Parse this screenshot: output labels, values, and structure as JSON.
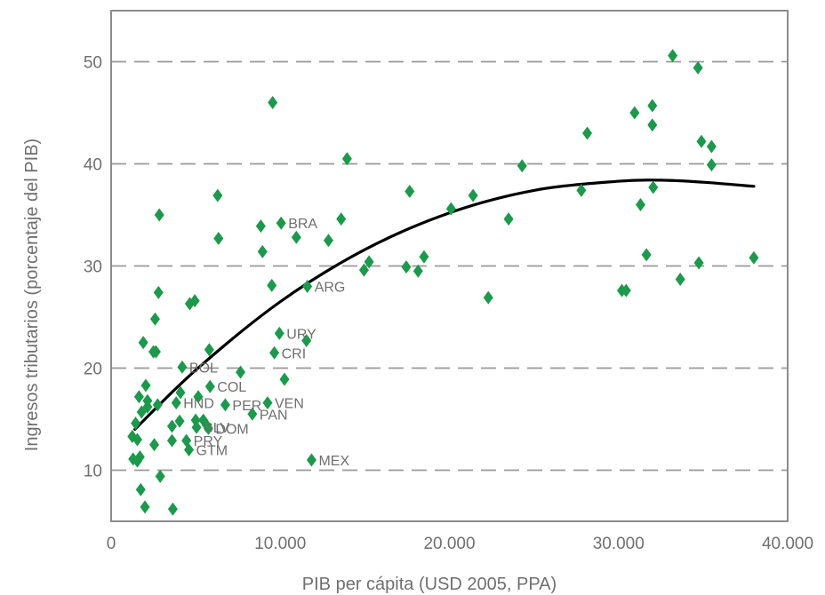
{
  "chart_data": {
    "type": "scatter",
    "title": "",
    "xlabel": "PIB per cápita (USD 2005, PPA)",
    "ylabel": "Ingresos tributarios (porcentaje del PIB)",
    "xlim": [
      0,
      40000
    ],
    "ylim": [
      5,
      55
    ],
    "x_ticks": [
      0,
      10000,
      20000,
      30000,
      40000
    ],
    "x_tick_labels": [
      "0",
      "10.000",
      "20.000",
      "30.000",
      "40.000"
    ],
    "y_ticks": [
      10,
      20,
      30,
      40,
      50
    ],
    "y_tick_labels": [
      "10",
      "20",
      "30",
      "40",
      "50"
    ],
    "grid": "horizontal dashed",
    "colors": {
      "points": "#1a9a4a",
      "trend": "#000000",
      "grid": "#999999",
      "frame": "#8c8c8c",
      "text": "#6f6f6f"
    },
    "points": [
      {
        "x": 1250,
        "y": 13.3
      },
      {
        "x": 1300,
        "y": 11.1
      },
      {
        "x": 1450,
        "y": 14.6
      },
      {
        "x": 1550,
        "y": 13.0
      },
      {
        "x": 1550,
        "y": 10.9
      },
      {
        "x": 1650,
        "y": 17.2
      },
      {
        "x": 1700,
        "y": 11.3
      },
      {
        "x": 1750,
        "y": 8.1
      },
      {
        "x": 1800,
        "y": 15.7
      },
      {
        "x": 1900,
        "y": 22.5
      },
      {
        "x": 2000,
        "y": 6.4
      },
      {
        "x": 2050,
        "y": 18.3
      },
      {
        "x": 2150,
        "y": 16.8
      },
      {
        "x": 2150,
        "y": 16.2
      },
      {
        "x": 2500,
        "y": 21.6
      },
      {
        "x": 2550,
        "y": 12.5
      },
      {
        "x": 2600,
        "y": 24.8
      },
      {
        "x": 2650,
        "y": 21.6
      },
      {
        "x": 2750,
        "y": 16.4
      },
      {
        "x": 2800,
        "y": 27.4
      },
      {
        "x": 2850,
        "y": 35.0
      },
      {
        "x": 2900,
        "y": 9.4
      },
      {
        "x": 3600,
        "y": 14.3
      },
      {
        "x": 3600,
        "y": 12.9
      },
      {
        "x": 3650,
        "y": 6.2
      },
      {
        "x": 3850,
        "y": 16.6
      },
      {
        "x": 4100,
        "y": 17.6
      },
      {
        "x": 4050,
        "y": 14.8
      },
      {
        "x": 4200,
        "y": 20.1
      },
      {
        "x": 4450,
        "y": 12.9
      },
      {
        "x": 4600,
        "y": 12.0
      },
      {
        "x": 4650,
        "y": 26.3
      },
      {
        "x": 4950,
        "y": 26.6
      },
      {
        "x": 5000,
        "y": 14.9
      },
      {
        "x": 5050,
        "y": 14.2
      },
      {
        "x": 5150,
        "y": 17.2
      },
      {
        "x": 5450,
        "y": 14.9
      },
      {
        "x": 5650,
        "y": 14.4
      },
      {
        "x": 5750,
        "y": 14.1
      },
      {
        "x": 5800,
        "y": 21.8
      },
      {
        "x": 5850,
        "y": 18.2
      },
      {
        "x": 6300,
        "y": 36.9
      },
      {
        "x": 6350,
        "y": 32.7
      },
      {
        "x": 6750,
        "y": 16.4
      },
      {
        "x": 7650,
        "y": 19.6
      },
      {
        "x": 8350,
        "y": 15.5
      },
      {
        "x": 8850,
        "y": 33.9
      },
      {
        "x": 8950,
        "y": 31.4
      },
      {
        "x": 9250,
        "y": 16.6
      },
      {
        "x": 9500,
        "y": 28.1
      },
      {
        "x": 9550,
        "y": 46.0
      },
      {
        "x": 9650,
        "y": 21.5
      },
      {
        "x": 9950,
        "y": 23.4
      },
      {
        "x": 10050,
        "y": 34.2
      },
      {
        "x": 10250,
        "y": 18.9
      },
      {
        "x": 10950,
        "y": 32.8
      },
      {
        "x": 11550,
        "y": 22.7
      },
      {
        "x": 11600,
        "y": 28.0
      },
      {
        "x": 11850,
        "y": 11.0
      },
      {
        "x": 12850,
        "y": 32.5
      },
      {
        "x": 13600,
        "y": 34.6
      },
      {
        "x": 13950,
        "y": 40.5
      },
      {
        "x": 14950,
        "y": 29.6
      },
      {
        "x": 15250,
        "y": 30.4
      },
      {
        "x": 17450,
        "y": 29.9
      },
      {
        "x": 17650,
        "y": 37.3
      },
      {
        "x": 18150,
        "y": 29.5
      },
      {
        "x": 18500,
        "y": 30.9
      },
      {
        "x": 20100,
        "y": 35.6
      },
      {
        "x": 21400,
        "y": 36.9
      },
      {
        "x": 22300,
        "y": 26.9
      },
      {
        "x": 23500,
        "y": 34.6
      },
      {
        "x": 24300,
        "y": 39.8
      },
      {
        "x": 27800,
        "y": 37.4
      },
      {
        "x": 28150,
        "y": 43.0
      },
      {
        "x": 30200,
        "y": 27.6
      },
      {
        "x": 30450,
        "y": 27.6
      },
      {
        "x": 30950,
        "y": 45.0
      },
      {
        "x": 31300,
        "y": 36.0
      },
      {
        "x": 31650,
        "y": 31.1
      },
      {
        "x": 32000,
        "y": 45.7
      },
      {
        "x": 32000,
        "y": 43.8
      },
      {
        "x": 32050,
        "y": 37.7
      },
      {
        "x": 33200,
        "y": 50.6
      },
      {
        "x": 33650,
        "y": 28.7
      },
      {
        "x": 34700,
        "y": 49.4
      },
      {
        "x": 34750,
        "y": 30.3
      },
      {
        "x": 34900,
        "y": 42.2
      },
      {
        "x": 35500,
        "y": 41.7
      },
      {
        "x": 35500,
        "y": 39.9
      },
      {
        "x": 38000,
        "y": 30.8
      }
    ],
    "annotations": [
      {
        "text": "BRA",
        "x": 10050,
        "y": 34.2
      },
      {
        "text": "ARG",
        "x": 11600,
        "y": 28.0
      },
      {
        "text": "URY",
        "x": 9950,
        "y": 23.4
      },
      {
        "text": "CRI",
        "x": 9650,
        "y": 21.5
      },
      {
        "text": "BOL",
        "x": 4200,
        "y": 20.1
      },
      {
        "text": "COL",
        "x": 5850,
        "y": 18.2
      },
      {
        "text": "HND",
        "x": 3850,
        "y": 16.6
      },
      {
        "text": "PER",
        "x": 6750,
        "y": 16.4
      },
      {
        "text": "VEN",
        "x": 9250,
        "y": 16.6
      },
      {
        "text": "SLV",
        "x": 5050,
        "y": 14.2
      },
      {
        "text": "PAN",
        "x": 8350,
        "y": 15.5
      },
      {
        "text": "DOM",
        "x": 5750,
        "y": 14.1
      },
      {
        "text": "PRY",
        "x": 4450,
        "y": 12.9
      },
      {
        "text": "GTM",
        "x": 4600,
        "y": 12.0
      },
      {
        "text": "MEX",
        "x": 11850,
        "y": 11.0
      }
    ],
    "trend": [
      {
        "x": 1400,
        "y": 14.0
      },
      {
        "x": 5000,
        "y": 19.8
      },
      {
        "x": 10000,
        "y": 26.5
      },
      {
        "x": 15000,
        "y": 31.6
      },
      {
        "x": 20000,
        "y": 35.2
      },
      {
        "x": 25000,
        "y": 37.4
      },
      {
        "x": 30000,
        "y": 38.3
      },
      {
        "x": 32500,
        "y": 38.4
      },
      {
        "x": 35000,
        "y": 38.2
      },
      {
        "x": 38000,
        "y": 37.8
      }
    ]
  }
}
